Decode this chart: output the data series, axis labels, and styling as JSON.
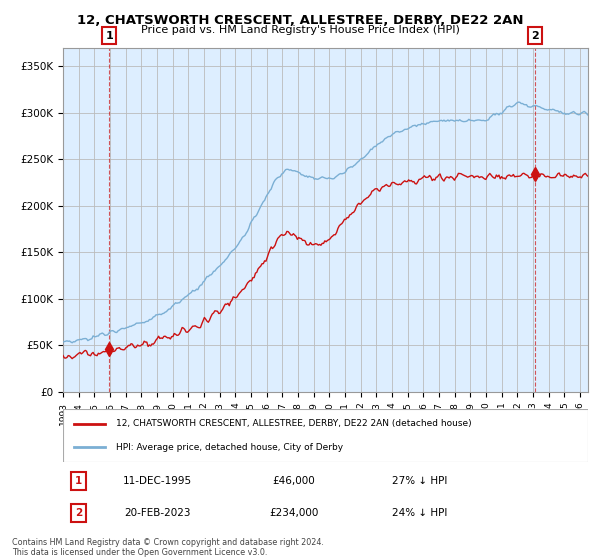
{
  "title": "12, CHATSWORTH CRESCENT, ALLESTREE, DERBY, DE22 2AN",
  "subtitle": "Price paid vs. HM Land Registry's House Price Index (HPI)",
  "ylabel_ticks": [
    "£0",
    "£50K",
    "£100K",
    "£150K",
    "£200K",
    "£250K",
    "£300K",
    "£350K"
  ],
  "ylim": [
    0,
    370000
  ],
  "xlim_start": 1993.0,
  "xlim_end": 2026.5,
  "hpi_color": "#7bafd4",
  "price_color": "#cc1111",
  "annotation_box_color": "#cc1111",
  "plot_bg_color": "#ddeeff",
  "hatch_color": "#c8c8c8",
  "grid_color": "#bbbbbb",
  "legend_label_price": "12, CHATSWORTH CRESCENT, ALLESTREE, DERBY, DE22 2AN (detached house)",
  "legend_label_hpi": "HPI: Average price, detached house, City of Derby",
  "transaction1_date": "11-DEC-1995",
  "transaction1_price": "£46,000",
  "transaction1_info": "27% ↓ HPI",
  "transaction2_date": "20-FEB-2023",
  "transaction2_price": "£234,000",
  "transaction2_info": "24% ↓ HPI",
  "footer": "Contains HM Land Registry data © Crown copyright and database right 2024.\nThis data is licensed under the Open Government Licence v3.0.",
  "point1_x": 1995.94,
  "point1_y": 46000,
  "point2_x": 2023.12,
  "point2_y": 234000
}
